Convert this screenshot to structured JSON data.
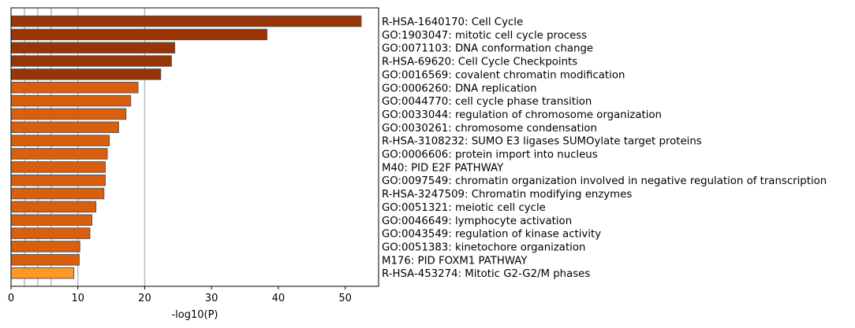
{
  "chart_data": {
    "type": "bar",
    "orientation": "horizontal",
    "xlabel": "-log10(P)",
    "xlim": [
      0,
      55
    ],
    "xticks": [
      0,
      10,
      20,
      30,
      40,
      50
    ],
    "reference_lines": [
      2,
      4,
      6,
      10,
      20
    ],
    "categories": [
      "R-HSA-1640170: Cell Cycle",
      "GO:1903047: mitotic cell cycle process",
      "GO:0071103: DNA conformation change",
      "R-HSA-69620: Cell Cycle Checkpoints",
      "GO:0016569: covalent chromatin modification",
      "GO:0006260: DNA replication",
      "GO:0044770: cell cycle phase transition",
      "GO:0033044: regulation of chromosome organization",
      "GO:0030261: chromosome condensation",
      "R-HSA-3108232: SUMO E3 ligases SUMOylate target proteins",
      "GO:0006606: protein import into nucleus",
      "M40: PID E2F PATHWAY",
      "GO:0097549: chromatin organization involved in negative regulation of transcription",
      "R-HSA-3247509: Chromatin modifying enzymes",
      "GO:0051321: meiotic cell cycle",
      "GO:0046649: lymphocyte activation",
      "GO:0043549: regulation of kinase activity",
      "GO:0051383: kinetochore organization",
      "M176: PID FOXM1 PATHWAY",
      "R-HSA-453274: Mitotic G2-G2/M phases"
    ],
    "values": [
      52.4,
      38.3,
      24.5,
      24.0,
      22.4,
      19.0,
      17.9,
      17.2,
      16.1,
      14.7,
      14.4,
      14.1,
      14.1,
      13.9,
      12.7,
      12.1,
      11.8,
      10.3,
      10.2,
      9.4
    ],
    "colors": [
      "#993404",
      "#993404",
      "#993404",
      "#993404",
      "#993404",
      "#d95f0e",
      "#d95f0e",
      "#d95f0e",
      "#d95f0e",
      "#d95f0e",
      "#d95f0e",
      "#d95f0e",
      "#d95f0e",
      "#d95f0e",
      "#d95f0e",
      "#d95f0e",
      "#d95f0e",
      "#d95f0e",
      "#d95f0e",
      "#fe9929"
    ],
    "bar_edge_color": "#555555",
    "reference_line_color": "#bbbbbb"
  }
}
